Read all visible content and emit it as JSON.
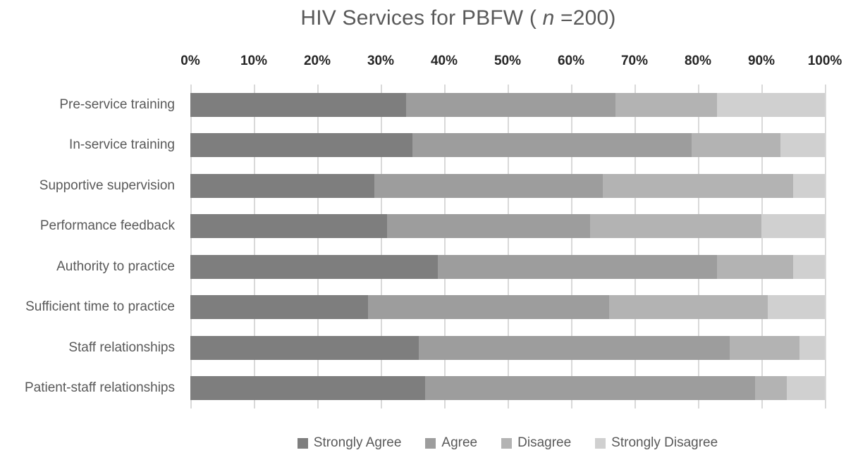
{
  "title": {
    "prefix": "HIV Services for PBFW ( ",
    "n": "n",
    "suffix": " =200)",
    "full": "HIV Services for PBFW ( n =200)"
  },
  "chart_data": {
    "type": "bar",
    "orientation": "horizontal",
    "stacked": true,
    "stacked_total": 100,
    "title": "HIV Services for PBFW ( n =200)",
    "categories": [
      "Pre-service training",
      "In-service training",
      "Supportive supervision",
      "Performance feedback",
      "Authority to practice",
      "Sufficient time to practice",
      "Staff relationships",
      "Patient-staff relationships"
    ],
    "series": [
      {
        "name": "Strongly Agree",
        "color": "#7e7e7e",
        "values": [
          34,
          35,
          29,
          31,
          39,
          28,
          36,
          37
        ]
      },
      {
        "name": "Agree",
        "color": "#9d9d9d",
        "values": [
          33,
          44,
          36,
          32,
          44,
          38,
          49,
          52
        ]
      },
      {
        "name": "Disagree",
        "color": "#b3b3b3",
        "values": [
          16,
          14,
          30,
          27,
          12,
          25,
          11,
          5
        ]
      },
      {
        "name": "Strongly Disagree",
        "color": "#d0d0d0",
        "values": [
          17,
          7,
          5,
          10,
          5,
          9,
          4,
          6
        ]
      }
    ],
    "x_ticks": [
      "0%",
      "10%",
      "20%",
      "30%",
      "40%",
      "50%",
      "60%",
      "70%",
      "80%",
      "90%",
      "100%"
    ],
    "xlim": [
      0,
      100
    ],
    "grid": "vertical",
    "axis_labels_position": "top",
    "legend_position": "bottom"
  },
  "colors": {
    "background": "#ffffff",
    "gridline": "#d9d9d9",
    "tick_label": "#262626",
    "text": "#595959"
  }
}
